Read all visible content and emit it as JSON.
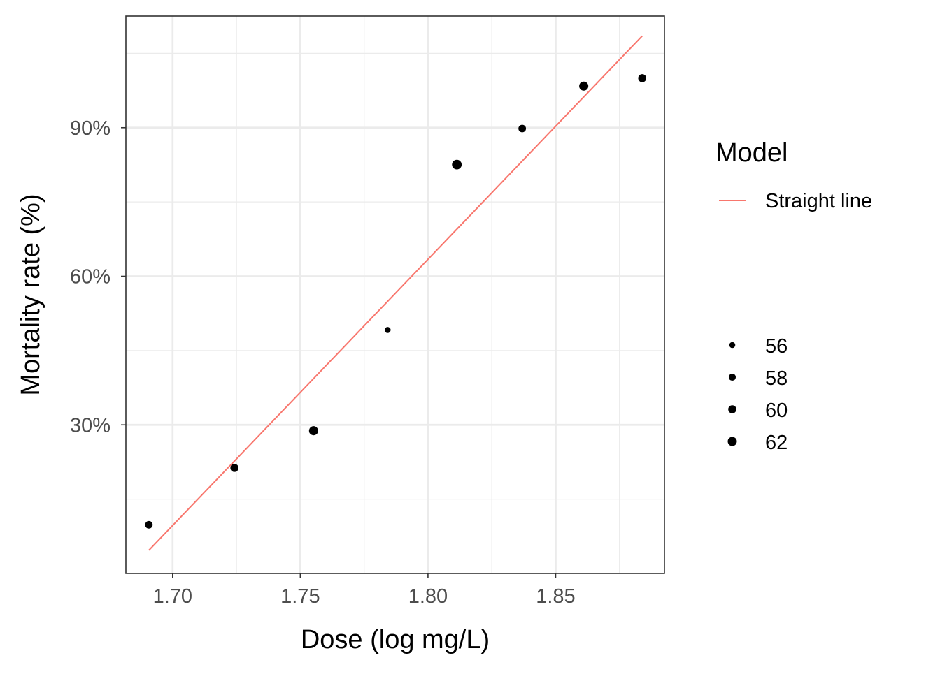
{
  "chart_data": {
    "type": "scatter",
    "xlabel": "Dose (log mg/L)",
    "ylabel": "Mortality rate (%)",
    "xlim": [
      1.6817,
      1.8926
    ],
    "ylim": [
      0.0,
      1.1253
    ],
    "x_ticks": [
      1.7,
      1.75,
      1.8,
      1.85
    ],
    "x_tick_labels": [
      "1.70",
      "1.75",
      "1.80",
      "1.85"
    ],
    "x_minor_ticks": [
      1.725,
      1.775,
      1.825,
      1.875
    ],
    "y_ticks": [
      0.3,
      0.6,
      0.9
    ],
    "y_tick_labels": [
      "30%",
      "60%",
      "90%"
    ],
    "y_minor_ticks": [
      0.15,
      0.45,
      0.75,
      1.05
    ],
    "grid": true,
    "points": [
      {
        "x": 1.6907,
        "y": 0.0983,
        "size": 59
      },
      {
        "x": 1.7242,
        "y": 0.2131,
        "size": 60
      },
      {
        "x": 1.7552,
        "y": 0.2881,
        "size": 62
      },
      {
        "x": 1.7842,
        "y": 0.4915,
        "size": 56
      },
      {
        "x": 1.8113,
        "y": 0.8254,
        "size": 63
      },
      {
        "x": 1.8369,
        "y": 0.8983,
        "size": 59
      },
      {
        "x": 1.861,
        "y": 0.9839,
        "size": 62
      },
      {
        "x": 1.8839,
        "y": 1.0,
        "size": 60
      }
    ],
    "fit_line": {
      "name": "Straight line",
      "color": "#F8766D",
      "x": [
        1.6907,
        1.8839
      ],
      "y": [
        0.0468,
        1.0852
      ]
    },
    "legend_position": "right",
    "legend_model": {
      "title": "Model",
      "items": [
        {
          "label": "Straight line",
          "color": "#F8766D"
        }
      ]
    },
    "legend_size": {
      "title": "",
      "items": [
        {
          "label": "56",
          "size": 56
        },
        {
          "label": "58",
          "size": 58
        },
        {
          "label": "60",
          "size": 60
        },
        {
          "label": "62",
          "size": 62
        }
      ]
    },
    "colors": {
      "points": "#000000",
      "grid": "#ebebeb",
      "panel_border": "#333333",
      "tick_text": "#4d4d4d"
    }
  }
}
